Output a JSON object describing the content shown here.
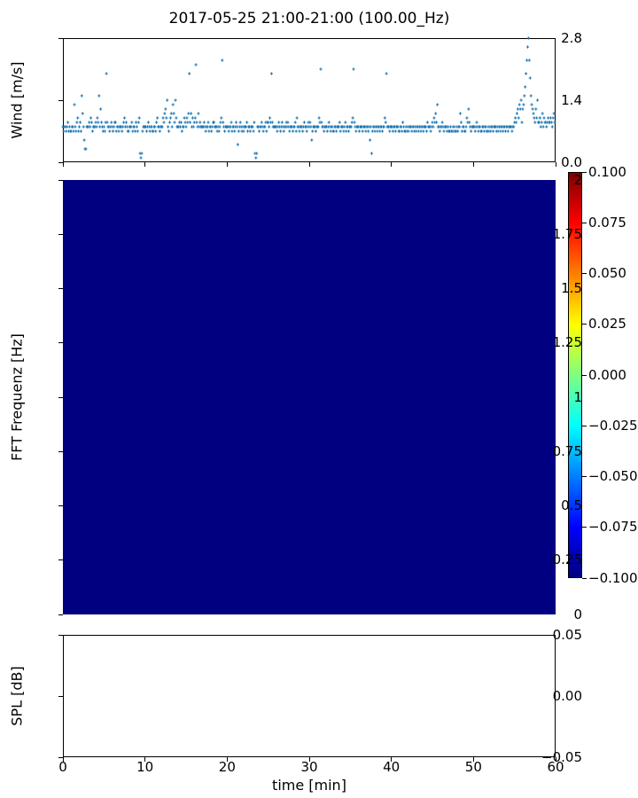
{
  "figure_title": "2017-05-25 21:00-21:00 (100.00_Hz)",
  "colors": {
    "marker": "#1f77b4",
    "heatmap_fill": "#000080",
    "axis": "#000000",
    "background": "#ffffff"
  },
  "chart_data": [
    {
      "type": "scatter",
      "title": "2017-05-25 21:00-21:00 (100.00_Hz)",
      "ylabel": "Wind [m/s]",
      "xlim": [
        0,
        60
      ],
      "ylim": [
        0,
        2.8
      ],
      "ytick_labels": [
        "0.0",
        "1.4",
        "2.8"
      ],
      "xticks_unlabeled": [
        0,
        10,
        20,
        30,
        40,
        50,
        60
      ],
      "marker": "plus",
      "marker_color": "#1f77b4",
      "grid": false,
      "sample_interval_min": 0.1,
      "values_encoding": "base36 chars, one sample per 0.1 min starting t=0; wind speed in m/s = parseInt(char,36)/10; whitespace ignored",
      "values": "8788789787 7887d879a7 897fb85338 8898a97888 98a9f8c987 879k988789 8789978878 88789a8987 7888978879 879a212788 8878987887 78879a8878 88a9bcae87 9ab8db9ea8 88989788a9 8a9bk9b8a8 9am98b8988 8898788978 8789988878 789an98788 8878897887 8984789878 7888978878 8879212887 8898788979 98a9k98888 8789878987 8898987888 78897a8878 8878988789 8985788878 88a9l98878 8878987887 7887888978 8878978878 889al98788 8788878887 8878582788 7887887887 88a9k88878 8878878887 7887987787 8788878878 7887887887 8887988878 98a9b9d887 8898788878 7787787877 8788b97887 78a9c98788 8878987887 7887887787 8788788878 7887887887 8878888788 9a9bcadce9 cdfhknqsnj fdcba9cae9 9a89b8a998 9a99a98ab9"
    },
    {
      "type": "heatmap",
      "ylabel": "FFT Frequenz [Hz]",
      "xlim": [
        0,
        60
      ],
      "ylim": [
        0,
        2
      ],
      "ytick_labels": [
        "0",
        "0.25",
        "0.5",
        "0.75",
        "1",
        "1.25",
        "1.5",
        "1.75",
        "2"
      ],
      "uniform_value": -0.1,
      "fill_color": "#000080",
      "grid": false,
      "colorbar": {
        "cmap": "jet",
        "vmin": -0.1,
        "vmax": 0.1,
        "tick_labels": [
          "0.100",
          "0.075",
          "0.050",
          "0.025",
          "0.000",
          "−0.025",
          "−0.050",
          "−0.075",
          "−0.100"
        ]
      }
    },
    {
      "type": "line",
      "ylabel": "SPL [dB]",
      "xlabel": "time [min]",
      "xlim": [
        0,
        60
      ],
      "ylim": [
        -0.05,
        0.05
      ],
      "ytick_labels": [
        "0.05",
        "0.00",
        "−0.05"
      ],
      "xtick_labels": [
        "0",
        "10",
        "20",
        "30",
        "40",
        "50",
        "60"
      ],
      "grid": false,
      "series": []
    }
  ]
}
